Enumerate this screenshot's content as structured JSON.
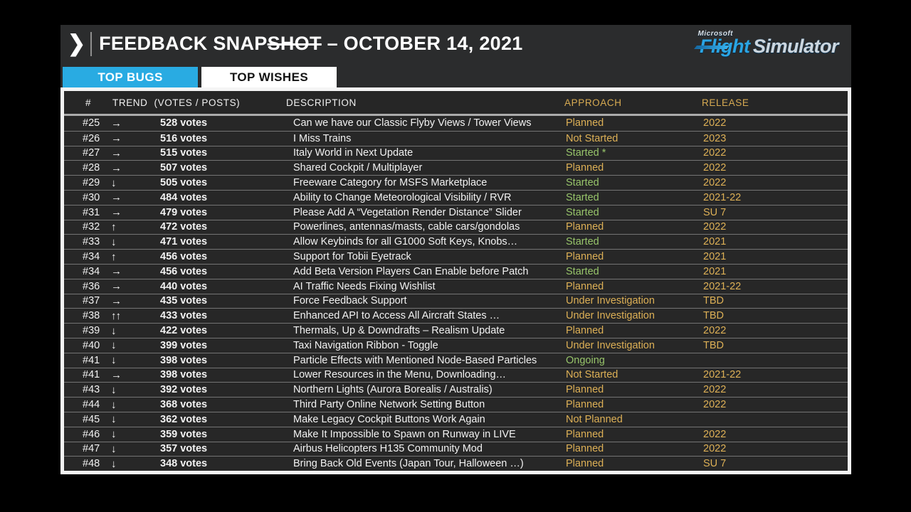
{
  "header": {
    "chevron_icon": "❯",
    "title_pre": "FEEDBACK SNAP",
    "title_strike": "SHOT",
    "title_post": " – OCTOBER 14, 2021",
    "logo": {
      "microsoft": "Microsoft",
      "flight": "Flight",
      "simulator": "Simulator"
    }
  },
  "tabs": [
    {
      "label": "TOP BUGS",
      "active": false
    },
    {
      "label": "TOP WISHES",
      "active": true
    }
  ],
  "colors": {
    "tab_blue": "#29abe2",
    "gold": "#ddb056",
    "green": "#97c46a"
  },
  "table": {
    "columns": {
      "num": "#",
      "trend": "TREND",
      "votes": "(VOTES / POSTS)",
      "description": "DESCRIPTION",
      "approach": "APPROACH",
      "release": "RELEASE"
    },
    "rows": [
      {
        "num": "#25",
        "trend": "→",
        "votes": "528 votes",
        "description": "Can we have our Classic Flyby Views / Tower Views",
        "approach": "Planned",
        "status_color": "gold",
        "release": "2022"
      },
      {
        "num": "#26",
        "trend": "→",
        "votes": "516 votes",
        "description": "I Miss Trains",
        "approach": "Not Started",
        "status_color": "gold",
        "release": "2023"
      },
      {
        "num": "#27",
        "trend": "→",
        "votes": "515 votes",
        "description": "Italy World in Next Update",
        "approach": "Started *",
        "status_color": "green",
        "release": "2022"
      },
      {
        "num": "#28",
        "trend": "→",
        "votes": "507 votes",
        "description": "Shared Cockpit / Multiplayer",
        "approach": "Planned",
        "status_color": "gold",
        "release": "2022"
      },
      {
        "num": "#29",
        "trend": "↓",
        "votes": "505 votes",
        "description": "Freeware Category for MSFS Marketplace",
        "approach": "Started",
        "status_color": "green",
        "release": "2022"
      },
      {
        "num": "#30",
        "trend": "→",
        "votes": "484 votes",
        "description": "Ability to Change Meteorological Visibility / RVR",
        "approach": "Started",
        "status_color": "green",
        "release": "2021-22"
      },
      {
        "num": "#31",
        "trend": "→",
        "votes": "479 votes",
        "description": "Please Add A “Vegetation Render Distance” Slider",
        "approach": "Started",
        "status_color": "green",
        "release": "SU 7"
      },
      {
        "num": "#32",
        "trend": "↑",
        "votes": "472 votes",
        "description": "Powerlines, antennas/masts, cable cars/gondolas",
        "approach": "Planned",
        "status_color": "gold",
        "release": "2022"
      },
      {
        "num": "#33",
        "trend": "↓",
        "votes": "471 votes",
        "description": "Allow Keybinds for all G1000 Soft Keys, Knobs…",
        "approach": "Started",
        "status_color": "green",
        "release": "2021"
      },
      {
        "num": "#34",
        "trend": "↑",
        "votes": "456 votes",
        "description": "Support for Tobii Eyetrack",
        "approach": "Planned",
        "status_color": "gold",
        "release": "2021"
      },
      {
        "num": "#34",
        "trend": "→",
        "votes": "456 votes",
        "description": "Add Beta Version Players Can Enable before Patch",
        "approach": "Started",
        "status_color": "green",
        "release": "2021"
      },
      {
        "num": "#36",
        "trend": "→",
        "votes": "440 votes",
        "description": "AI Traffic Needs Fixing Wishlist",
        "approach": "Planned",
        "status_color": "gold",
        "release": "2021-22"
      },
      {
        "num": "#37",
        "trend": "→",
        "votes": "435 votes",
        "description": "Force Feedback Support",
        "approach": "Under Investigation",
        "status_color": "gold",
        "release": "TBD"
      },
      {
        "num": "#38",
        "trend": "↑↑",
        "votes": "433 votes",
        "description": "Enhanced API to Access All Aircraft States …",
        "approach": "Under Investigation",
        "status_color": "gold",
        "release": "TBD"
      },
      {
        "num": "#39",
        "trend": "↓",
        "votes": "422 votes",
        "description": "Thermals, Up & Downdrafts – Realism Update",
        "approach": "Planned",
        "status_color": "gold",
        "release": "2022"
      },
      {
        "num": "#40",
        "trend": "↓",
        "votes": "399 votes",
        "description": "Taxi Navigation Ribbon - Toggle",
        "approach": "Under Investigation",
        "status_color": "gold",
        "release": "TBD"
      },
      {
        "num": "#41",
        "trend": "↓",
        "votes": "398 votes",
        "description": "Particle Effects with Mentioned Node-Based Particles",
        "approach": "Ongoing",
        "status_color": "green",
        "release": ""
      },
      {
        "num": "#41",
        "trend": "→",
        "votes": "398 votes",
        "description": "Lower Resources in the Menu, Downloading…",
        "approach": "Not Started",
        "status_color": "gold",
        "release": "2021-22"
      },
      {
        "num": "#43",
        "trend": "↓",
        "votes": "392 votes",
        "description": "Northern Lights (Aurora Borealis / Australis)",
        "approach": "Planned",
        "status_color": "gold",
        "release": "2022"
      },
      {
        "num": "#44",
        "trend": "↓",
        "votes": "368 votes",
        "description": "Third Party Online Network Setting Button",
        "approach": "Planned",
        "status_color": "gold",
        "release": "2022"
      },
      {
        "num": "#45",
        "trend": "↓",
        "votes": "362 votes",
        "description": "Make Legacy Cockpit Buttons Work Again",
        "approach": "Not Planned",
        "status_color": "gold",
        "release": ""
      },
      {
        "num": "#46",
        "trend": "↓",
        "votes": "359 votes",
        "description": "Make It Impossible to Spawn on Runway in LIVE",
        "approach": "Planned",
        "status_color": "gold",
        "release": "2022"
      },
      {
        "num": "#47",
        "trend": "↓",
        "votes": "357 votes",
        "description": "Airbus Helicopters H135 Community Mod",
        "approach": "Planned",
        "status_color": "gold",
        "release": "2022"
      },
      {
        "num": "#48",
        "trend": "↓",
        "votes": "348 votes",
        "description": "Bring Back Old Events (Japan Tour, Halloween …)",
        "approach": "Planned",
        "status_color": "gold",
        "release": "SU 7"
      }
    ]
  }
}
